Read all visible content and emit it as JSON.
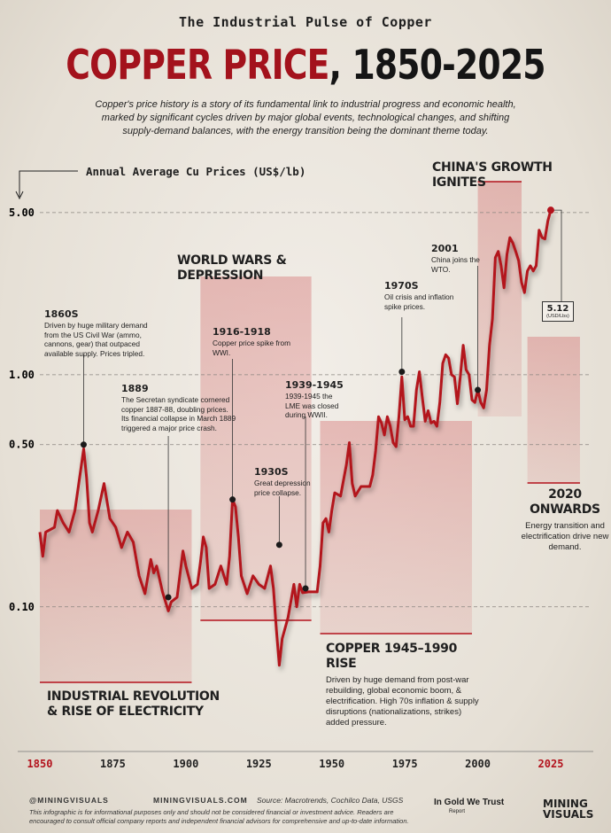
{
  "kicker": "The Industrial Pulse of Copper",
  "title_main": "COPPER PRICE",
  "title_rest": ", 1850-2025",
  "intro": "Copper's price history is a story of its fundamental link to industrial progress and economic health, marked by significant cycles driven by major global events, technological changes, and shifting supply-demand balances, with the energy transition being the dominant theme today.",
  "chart_data": {
    "type": "line",
    "y_label": "Annual Average Cu Prices (US$/lb)",
    "log_y": true,
    "grid": true,
    "xlim": [
      1850,
      2025
    ],
    "xticks": [
      1850,
      1875,
      1900,
      1925,
      1950,
      1975,
      2000,
      2025
    ],
    "ylim": [
      0.04,
      6.5
    ],
    "yticks": [
      {
        "value": 5,
        "label": "5.00"
      },
      {
        "value": 1,
        "label": "1.00"
      },
      {
        "value": 0.5,
        "label": "0.50"
      },
      {
        "value": 0.1,
        "label": "0.10"
      }
    ],
    "x": [
      1850,
      1851,
      1852,
      1855,
      1856,
      1858,
      1860,
      1862,
      1864,
      1865,
      1866,
      1867,
      1868,
      1870,
      1872,
      1874,
      1876,
      1878,
      1880,
      1882,
      1884,
      1886,
      1888,
      1889,
      1890,
      1892,
      1894,
      1895,
      1897,
      1899,
      1900,
      1902,
      1904,
      1905,
      1906,
      1907,
      1908,
      1910,
      1912,
      1914,
      1915,
      1916,
      1917,
      1918,
      1919,
      1921,
      1923,
      1925,
      1927,
      1929,
      1930,
      1931,
      1932,
      1933,
      1935,
      1937,
      1938,
      1939,
      1940,
      1942,
      1945,
      1946,
      1947,
      1948,
      1949,
      1950,
      1951,
      1953,
      1955,
      1956,
      1957,
      1958,
      1960,
      1963,
      1964,
      1965,
      1966,
      1967,
      1968,
      1969,
      1970,
      1971,
      1972,
      1973,
      1974,
      1975,
      1976,
      1977,
      1978,
      1979,
      1980,
      1981,
      1982,
      1983,
      1984,
      1985,
      1986,
      1987,
      1988,
      1989,
      1990,
      1991,
      1992,
      1993,
      1994,
      1995,
      1996,
      1997,
      1998,
      1999,
      2000,
      2001,
      2002,
      2003,
      2004,
      2005,
      2006,
      2007,
      2008,
      2009,
      2010,
      2011,
      2012,
      2013,
      2014,
      2015,
      2016,
      2017,
      2018,
      2019,
      2020,
      2021,
      2022,
      2023,
      2024,
      2025
    ],
    "series": [
      {
        "name": "Copper price",
        "color": "#b3121c",
        "values": [
          0.21,
          0.165,
          0.21,
          0.22,
          0.26,
          0.23,
          0.21,
          0.26,
          0.39,
          0.48,
          0.36,
          0.23,
          0.21,
          0.26,
          0.34,
          0.24,
          0.22,
          0.18,
          0.21,
          0.19,
          0.136,
          0.114,
          0.16,
          0.14,
          0.15,
          0.116,
          0.096,
          0.105,
          0.11,
          0.174,
          0.15,
          0.12,
          0.125,
          0.155,
          0.2,
          0.18,
          0.12,
          0.125,
          0.15,
          0.125,
          0.165,
          0.29,
          0.27,
          0.2,
          0.136,
          0.114,
          0.136,
          0.125,
          0.12,
          0.15,
          0.12,
          0.08,
          0.056,
          0.073,
          0.09,
          0.125,
          0.1,
          0.125,
          0.115,
          0.116,
          0.116,
          0.15,
          0.23,
          0.24,
          0.21,
          0.26,
          0.31,
          0.3,
          0.41,
          0.51,
          0.34,
          0.3,
          0.33,
          0.33,
          0.37,
          0.47,
          0.66,
          0.62,
          0.55,
          0.66,
          0.6,
          0.51,
          0.49,
          0.66,
          0.98,
          0.64,
          0.66,
          0.6,
          0.6,
          0.86,
          1.03,
          0.8,
          0.63,
          0.7,
          0.62,
          0.63,
          0.6,
          0.76,
          1.12,
          1.22,
          1.18,
          1.0,
          0.98,
          0.75,
          0.98,
          1.34,
          1.05,
          1.0,
          0.78,
          0.76,
          0.86,
          0.76,
          0.72,
          0.86,
          1.34,
          1.74,
          3.2,
          3.4,
          2.95,
          2.37,
          3.3,
          3.9,
          3.7,
          3.4,
          3.1,
          2.5,
          2.26,
          2.8,
          2.95,
          2.8,
          2.95,
          4.2,
          3.9,
          3.85,
          4.6,
          5.12
        ]
      }
    ],
    "end_label": {
      "value": 5.12,
      "unit": "(USD/Lbs)"
    },
    "annotations": [
      {
        "title": "1860S",
        "text": "Driven by huge military demand from the US Civil War (ammo, cannons, gear) that outpaced available supply. Prices tripled.",
        "point": [
          1865,
          0.5
        ]
      },
      {
        "title": "1889",
        "text": "The Secretan syndicate cornered copper 1887-88, doubling prices. Its financial collapse in March 1889 triggered a major price crash.",
        "point": [
          1894,
          0.11
        ]
      },
      {
        "title": "1916-1918",
        "text": "Copper price spike from WWI.",
        "point": [
          1916,
          0.29
        ]
      },
      {
        "title": "1930S",
        "text": "Great depression price collapse.",
        "point": [
          1932,
          0.185
        ]
      },
      {
        "title": "1939-1945",
        "text": "1939-1945 the LME was closed during WWII.",
        "point": [
          1941,
          0.12
        ]
      },
      {
        "title": "1970S",
        "text": "Oil crisis and inflation spike prices.",
        "point": [
          1974,
          1.03
        ]
      },
      {
        "title": "2001",
        "text": "China joins the WTO.",
        "point": [
          2000,
          0.86
        ]
      }
    ],
    "regions": [
      {
        "label": "INDUSTRIAL REVOLUTION\n& RISE OF ELECTRICITY",
        "start": 1850,
        "end": 1902
      },
      {
        "label": "WORLD WARS & DEPRESSION",
        "start": 1905,
        "end": 1943
      },
      {
        "label": "COPPER 1945–1990 RISE",
        "text": "Driven by huge demand from post-war rebuilding, global economic boom, & electrification. High 70s inflation & supply disruptions (nationalizations, strikes) added pressure.",
        "start": 1946,
        "end": 1998
      },
      {
        "label": "CHINA'S GROWTH IGNITES",
        "start": 2000,
        "end": 2015
      },
      {
        "label": "2020\nONWARDS",
        "text": "Energy transition and electrification drive new demand.",
        "start": 2017,
        "end": 2035
      }
    ]
  },
  "footer": {
    "handle": "@MININGVISUALS",
    "site": "MININGVISUALS.COM",
    "source": "Source: Macrotrends, Cochilco Data, USGS",
    "disclaimer": "This infographic is for informational purposes only and should not be considered financial or investment advice. Readers are encouraged to consult official company reports and independent financial advisors for comprehensive and up-to-date information.",
    "partner": "In Gold We Trust",
    "partner_sub": "Report",
    "brand": "MINING VISUALS"
  }
}
